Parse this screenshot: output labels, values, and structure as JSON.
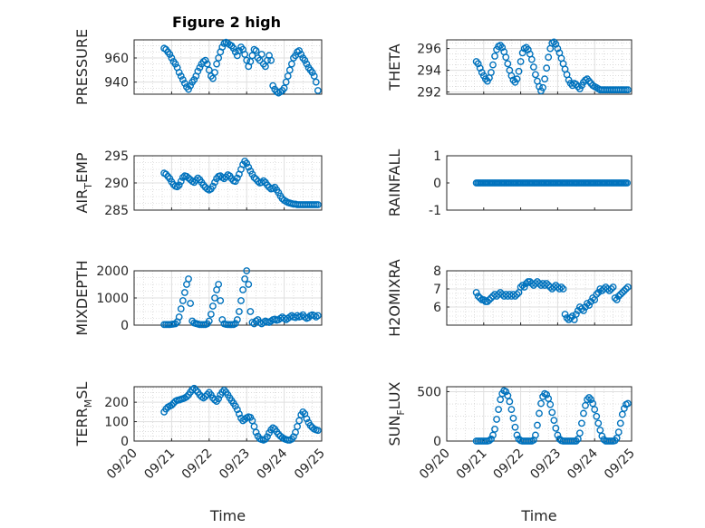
{
  "figure_title": "Figure 2 high",
  "colors": {
    "marker": "#0072BD",
    "axis": "#262626",
    "grid": "#dfdfdf",
    "minor_grid": "#c8c8c8"
  },
  "chart_data": [
    {
      "type": "scatter",
      "ylabel_main": "PRESSURE",
      "ylabel_sub": "",
      "ylabel_tail": "",
      "xlim": [
        "09/20",
        "09/25"
      ],
      "ylim": [
        930,
        975
      ],
      "yticks": [
        940,
        960
      ],
      "grid": true,
      "title": "Figure 2 high",
      "x": [
        20.8,
        20.85,
        20.9,
        20.95,
        21.0,
        21.05,
        21.1,
        21.15,
        21.2,
        21.25,
        21.3,
        21.35,
        21.4,
        21.45,
        21.5,
        21.55,
        21.6,
        21.65,
        21.7,
        21.75,
        21.8,
        21.85,
        21.9,
        21.95,
        22.0,
        22.05,
        22.1,
        22.15,
        22.2,
        22.25,
        22.3,
        22.35,
        22.4,
        22.45,
        22.5,
        22.55,
        22.6,
        22.65,
        22.7,
        22.75,
        22.8,
        22.85,
        22.9,
        22.95,
        23.0,
        23.05,
        23.1,
        23.15,
        23.2,
        23.25,
        23.3,
        23.35,
        23.4,
        23.45,
        23.5,
        23.55,
        23.6,
        23.65,
        23.7,
        23.75,
        23.8,
        23.85,
        23.9,
        23.95,
        24.0,
        24.05,
        24.1,
        24.15,
        24.2,
        24.25,
        24.3,
        24.35,
        24.4,
        24.45,
        24.5,
        24.55,
        24.6,
        24.65,
        24.7,
        24.75,
        24.8,
        24.85,
        24.9
      ],
      "y": [
        968,
        967,
        965,
        963,
        960,
        957,
        955,
        952,
        948,
        945,
        942,
        939,
        936,
        934,
        937,
        940,
        942,
        945,
        949,
        952,
        955,
        957,
        958,
        955,
        950,
        945,
        943,
        948,
        955,
        960,
        965,
        969,
        972,
        973,
        972,
        971,
        970,
        968,
        965,
        962,
        966,
        969,
        967,
        963,
        958,
        953,
        957,
        962,
        967,
        966,
        960,
        958,
        963,
        955,
        953,
        958,
        962,
        958,
        937,
        934,
        932,
        931,
        932,
        933,
        935,
        940,
        945,
        950,
        955,
        960,
        962,
        965,
        966,
        963,
        960,
        958,
        955,
        952,
        950,
        948,
        945,
        940,
        933
      ]
    },
    {
      "type": "scatter",
      "ylabel_main": "THETA",
      "ylabel_sub": "",
      "ylabel_tail": "",
      "xlim": [
        "09/20",
        "09/25"
      ],
      "ylim": [
        291.8,
        296.8
      ],
      "yticks": [
        292,
        294,
        296
      ],
      "grid": true,
      "x": [
        20.8,
        20.85,
        20.9,
        20.95,
        21.0,
        21.05,
        21.1,
        21.15,
        21.2,
        21.25,
        21.3,
        21.35,
        21.4,
        21.45,
        21.5,
        21.55,
        21.6,
        21.65,
        21.7,
        21.75,
        21.8,
        21.85,
        21.9,
        21.95,
        22.0,
        22.05,
        22.1,
        22.15,
        22.2,
        22.25,
        22.3,
        22.35,
        22.4,
        22.45,
        22.5,
        22.55,
        22.6,
        22.65,
        22.7,
        22.75,
        22.8,
        22.85,
        22.9,
        22.95,
        23.0,
        23.05,
        23.1,
        23.15,
        23.2,
        23.25,
        23.3,
        23.35,
        23.4,
        23.45,
        23.5,
        23.55,
        23.6,
        23.65,
        23.7,
        23.75,
        23.8,
        23.85,
        23.9,
        23.95,
        24.0,
        24.05,
        24.1,
        24.15,
        24.2,
        24.25,
        24.3,
        24.35,
        24.4,
        24.45,
        24.5,
        24.55,
        24.6,
        24.65,
        24.7,
        24.75,
        24.8,
        24.85,
        24.9
      ],
      "y": [
        294.8,
        294.6,
        294.2,
        293.8,
        293.5,
        293.2,
        293.0,
        293.3,
        293.8,
        294.5,
        295.3,
        295.9,
        296.2,
        296.3,
        296.1,
        295.7,
        295.2,
        294.6,
        294.0,
        293.5,
        293.1,
        292.9,
        293.2,
        293.9,
        294.8,
        295.6,
        296.0,
        296.1,
        295.9,
        295.5,
        295.0,
        294.3,
        293.6,
        293.0,
        292.5,
        292.1,
        292.4,
        293.2,
        294.2,
        295.2,
        296.0,
        296.5,
        296.6,
        296.4,
        296.0,
        295.6,
        295.1,
        294.6,
        294.1,
        293.6,
        293.1,
        292.8,
        292.6,
        292.8,
        292.7,
        292.5,
        292.3,
        292.6,
        292.9,
        293.1,
        293.2,
        293.0,
        292.8,
        292.6,
        292.5,
        292.4,
        292.3,
        292.2,
        292.2,
        292.2,
        292.2,
        292.2,
        292.2,
        292.2,
        292.2,
        292.2,
        292.2,
        292.2,
        292.2,
        292.2,
        292.2,
        292.2,
        292.2
      ]
    },
    {
      "type": "scatter",
      "ylabel_main": "AIR",
      "ylabel_sub": "T",
      "ylabel_tail": "EMP",
      "xlim": [
        "09/20",
        "09/25"
      ],
      "ylim": [
        285,
        295
      ],
      "yticks": [
        285,
        290,
        295
      ],
      "grid": true,
      "x": [
        20.8,
        20.85,
        20.9,
        20.95,
        21.0,
        21.05,
        21.1,
        21.15,
        21.2,
        21.25,
        21.3,
        21.35,
        21.4,
        21.45,
        21.5,
        21.55,
        21.6,
        21.65,
        21.7,
        21.75,
        21.8,
        21.85,
        21.9,
        21.95,
        22.0,
        22.05,
        22.1,
        22.15,
        22.2,
        22.25,
        22.3,
        22.35,
        22.4,
        22.45,
        22.5,
        22.55,
        22.6,
        22.65,
        22.7,
        22.75,
        22.8,
        22.85,
        22.9,
        22.95,
        23.0,
        23.05,
        23.1,
        23.15,
        23.2,
        23.25,
        23.3,
        23.35,
        23.4,
        23.45,
        23.5,
        23.55,
        23.6,
        23.65,
        23.7,
        23.75,
        23.8,
        23.85,
        23.9,
        23.95,
        24.0,
        24.05,
        24.1,
        24.15,
        24.2,
        24.25,
        24.3,
        24.35,
        24.4,
        24.45,
        24.5,
        24.55,
        24.6,
        24.65,
        24.7,
        24.75,
        24.8,
        24.85,
        24.9
      ],
      "y": [
        291.8,
        291.6,
        291.2,
        290.8,
        290.2,
        289.7,
        289.4,
        289.3,
        289.6,
        290.3,
        291.0,
        291.3,
        291.2,
        290.9,
        290.6,
        290.3,
        290.1,
        290.5,
        290.9,
        290.6,
        290.1,
        289.6,
        289.2,
        288.9,
        288.7,
        288.9,
        289.4,
        290.1,
        290.8,
        291.2,
        291.3,
        291.0,
        290.8,
        291.1,
        291.5,
        291.3,
        290.8,
        290.4,
        290.3,
        290.9,
        291.6,
        292.5,
        293.4,
        294.0,
        293.6,
        292.9,
        292.2,
        291.6,
        291.0,
        290.7,
        290.3,
        290.0,
        290.1,
        290.4,
        290.1,
        289.6,
        289.2,
        288.9,
        289.0,
        289.2,
        288.7,
        288.2,
        287.6,
        287.1,
        286.8,
        286.6,
        286.4,
        286.3,
        286.2,
        286.1,
        286.1,
        286.0,
        286.0,
        286.0,
        286.0,
        286.0,
        286.0,
        286.0,
        286.0,
        286.0,
        286.0,
        286.0,
        286.0
      ]
    },
    {
      "type": "scatter",
      "ylabel_main": "RAINFALL",
      "ylabel_sub": "",
      "ylabel_tail": "",
      "xlim": [
        "09/20",
        "09/25"
      ],
      "ylim": [
        -1,
        1
      ],
      "yticks": [
        -1,
        0,
        1
      ],
      "grid": false,
      "x_range": [
        20.8,
        24.9
      ],
      "x_step": 0.04,
      "constant_y": 0
    },
    {
      "type": "scatter",
      "ylabel_main": "MIXDEPTH",
      "ylabel_sub": "",
      "ylabel_tail": "",
      "xlim": [
        "09/20",
        "09/25"
      ],
      "ylim": [
        0,
        2000
      ],
      "yticks": [
        0,
        1000,
        2000
      ],
      "grid": true,
      "x": [
        20.8,
        20.85,
        20.9,
        20.95,
        21.0,
        21.05,
        21.1,
        21.15,
        21.2,
        21.25,
        21.3,
        21.35,
        21.4,
        21.45,
        21.5,
        21.55,
        21.6,
        21.65,
        21.7,
        21.75,
        21.8,
        21.85,
        21.9,
        21.95,
        22.0,
        22.05,
        22.1,
        22.15,
        22.2,
        22.25,
        22.3,
        22.35,
        22.4,
        22.45,
        22.5,
        22.55,
        22.6,
        22.65,
        22.7,
        22.75,
        22.8,
        22.85,
        22.9,
        22.95,
        23.0,
        23.05,
        23.1,
        23.15,
        23.2,
        23.25,
        23.3,
        23.35,
        23.4,
        23.45,
        23.5,
        23.55,
        23.6,
        23.65,
        23.7,
        23.75,
        23.8,
        23.85,
        23.9,
        23.95,
        24.0,
        24.05,
        24.1,
        24.15,
        24.2,
        24.25,
        24.3,
        24.35,
        24.4,
        24.45,
        24.5,
        24.55,
        24.6,
        24.65,
        24.7,
        24.75,
        24.8,
        24.85,
        24.9
      ],
      "y": [
        20,
        20,
        20,
        20,
        30,
        40,
        50,
        120,
        300,
        600,
        900,
        1200,
        1500,
        1700,
        800,
        150,
        80,
        60,
        40,
        20,
        20,
        20,
        20,
        50,
        150,
        400,
        700,
        1000,
        1300,
        1500,
        900,
        200,
        50,
        30,
        20,
        20,
        20,
        20,
        60,
        200,
        500,
        900,
        1300,
        1700,
        2000,
        1500,
        500,
        100,
        50,
        150,
        200,
        100,
        50,
        100,
        150,
        120,
        100,
        150,
        200,
        220,
        180,
        200,
        250,
        300,
        250,
        200,
        250,
        300,
        350,
        300,
        280,
        350,
        300,
        320,
        380,
        300,
        250,
        280,
        350,
        380,
        350,
        300,
        350
      ]
    },
    {
      "type": "scatter",
      "ylabel_main": "H2OMIXRA",
      "ylabel_sub": "",
      "ylabel_tail": "",
      "xlim": [
        "09/20",
        "09/25"
      ],
      "ylim": [
        5,
        8
      ],
      "yticks": [
        6,
        7,
        8
      ],
      "grid": true,
      "x": [
        20.8,
        20.85,
        20.9,
        20.95,
        21.0,
        21.05,
        21.1,
        21.15,
        21.2,
        21.25,
        21.3,
        21.35,
        21.4,
        21.45,
        21.5,
        21.55,
        21.6,
        21.65,
        21.7,
        21.75,
        21.8,
        21.85,
        21.9,
        21.95,
        22.0,
        22.05,
        22.1,
        22.15,
        22.2,
        22.25,
        22.3,
        22.35,
        22.4,
        22.45,
        22.5,
        22.55,
        22.6,
        22.65,
        22.7,
        22.75,
        22.8,
        22.85,
        22.9,
        22.95,
        23.0,
        23.05,
        23.1,
        23.15,
        23.2,
        23.25,
        23.3,
        23.35,
        23.4,
        23.45,
        23.5,
        23.55,
        23.6,
        23.65,
        23.7,
        23.75,
        23.8,
        23.85,
        23.9,
        23.95,
        24.0,
        24.05,
        24.1,
        24.15,
        24.2,
        24.25,
        24.3,
        24.35,
        24.4,
        24.45,
        24.5,
        24.55,
        24.6,
        24.65,
        24.7,
        24.75,
        24.8,
        24.85,
        24.9
      ],
      "y": [
        6.8,
        6.6,
        6.5,
        6.4,
        6.4,
        6.3,
        6.3,
        6.4,
        6.5,
        6.6,
        6.7,
        6.6,
        6.7,
        6.8,
        6.7,
        6.6,
        6.7,
        6.6,
        6.7,
        6.6,
        6.7,
        6.6,
        6.7,
        6.8,
        7.1,
        7.2,
        7.1,
        7.3,
        7.4,
        7.4,
        7.3,
        7.2,
        7.3,
        7.4,
        7.3,
        7.2,
        7.3,
        7.2,
        7.3,
        7.2,
        7.1,
        7.0,
        7.1,
        7.2,
        7.1,
        7.0,
        7.1,
        7.0,
        5.6,
        5.4,
        5.3,
        5.4,
        5.5,
        5.3,
        5.6,
        5.8,
        6.0,
        5.9,
        5.8,
        6.0,
        6.2,
        6.1,
        6.3,
        6.5,
        6.4,
        6.7,
        6.8,
        7.0,
        6.9,
        7.0,
        7.1,
        7.0,
        6.9,
        7.0,
        7.1,
        6.5,
        6.4,
        6.6,
        6.7,
        6.8,
        6.9,
        7.0,
        7.1
      ]
    },
    {
      "type": "scatter",
      "ylabel_main": "TERR",
      "ylabel_sub": "M",
      "ylabel_tail": "SL",
      "xlim": [
        "09/20",
        "09/25"
      ],
      "ylim": [
        0,
        280
      ],
      "yticks": [
        0,
        100,
        200
      ],
      "grid": true,
      "x": [
        20.8,
        20.85,
        20.9,
        20.95,
        21.0,
        21.05,
        21.1,
        21.15,
        21.2,
        21.25,
        21.3,
        21.35,
        21.4,
        21.45,
        21.5,
        21.55,
        21.6,
        21.65,
        21.7,
        21.75,
        21.8,
        21.85,
        21.9,
        21.95,
        22.0,
        22.05,
        22.1,
        22.15,
        22.2,
        22.25,
        22.3,
        22.35,
        22.4,
        22.45,
        22.5,
        22.55,
        22.6,
        22.65,
        22.7,
        22.75,
        22.8,
        22.85,
        22.9,
        22.95,
        23.0,
        23.05,
        23.1,
        23.15,
        23.2,
        23.25,
        23.3,
        23.35,
        23.4,
        23.45,
        23.5,
        23.55,
        23.6,
        23.65,
        23.7,
        23.75,
        23.8,
        23.85,
        23.9,
        23.95,
        24.0,
        24.05,
        24.1,
        24.15,
        24.2,
        24.25,
        24.3,
        24.35,
        24.4,
        24.45,
        24.5,
        24.55,
        24.6,
        24.65,
        24.7,
        24.75,
        24.8,
        24.85,
        24.9
      ],
      "y": [
        150,
        165,
        175,
        180,
        185,
        195,
        205,
        210,
        212,
        215,
        218,
        222,
        228,
        238,
        252,
        265,
        272,
        262,
        252,
        238,
        228,
        222,
        230,
        240,
        250,
        238,
        222,
        212,
        205,
        218,
        238,
        252,
        262,
        252,
        238,
        222,
        208,
        195,
        180,
        162,
        140,
        118,
        105,
        112,
        120,
        125,
        122,
        105,
        75,
        45,
        25,
        12,
        8,
        5,
        10,
        22,
        42,
        58,
        68,
        62,
        48,
        35,
        25,
        18,
        12,
        8,
        5,
        5,
        10,
        22,
        45,
        75,
        105,
        135,
        150,
        140,
        115,
        95,
        80,
        70,
        62,
        58,
        55
      ]
    },
    {
      "type": "scatter",
      "ylabel_main": "SUN",
      "ylabel_sub": "F",
      "ylabel_tail": "LUX",
      "xlim": [
        "09/20",
        "09/25"
      ],
      "ylim": [
        0,
        550
      ],
      "yticks": [
        0,
        500
      ],
      "grid": true,
      "x": [
        20.8,
        20.85,
        20.9,
        20.95,
        21.0,
        21.05,
        21.1,
        21.15,
        21.2,
        21.25,
        21.3,
        21.35,
        21.4,
        21.45,
        21.5,
        21.55,
        21.6,
        21.65,
        21.7,
        21.75,
        21.8,
        21.85,
        21.9,
        21.95,
        22.0,
        22.05,
        22.1,
        22.15,
        22.2,
        22.25,
        22.3,
        22.35,
        22.4,
        22.45,
        22.5,
        22.55,
        22.6,
        22.65,
        22.7,
        22.75,
        22.8,
        22.85,
        22.9,
        22.95,
        23.0,
        23.05,
        23.1,
        23.15,
        23.2,
        23.25,
        23.3,
        23.35,
        23.4,
        23.45,
        23.5,
        23.55,
        23.6,
        23.65,
        23.7,
        23.75,
        23.8,
        23.85,
        23.9,
        23.95,
        24.0,
        24.05,
        24.1,
        24.15,
        24.2,
        24.25,
        24.3,
        24.35,
        24.4,
        24.45,
        24.5,
        24.55,
        24.6,
        24.65,
        24.7,
        24.75,
        24.8,
        24.85,
        24.9
      ],
      "y": [
        0,
        0,
        0,
        0,
        0,
        0,
        0,
        5,
        20,
        60,
        120,
        220,
        320,
        420,
        480,
        510,
        500,
        460,
        400,
        320,
        230,
        140,
        60,
        20,
        5,
        0,
        0,
        0,
        0,
        0,
        0,
        10,
        60,
        160,
        280,
        380,
        450,
        480,
        470,
        430,
        370,
        290,
        210,
        130,
        60,
        20,
        5,
        0,
        0,
        0,
        0,
        0,
        0,
        0,
        0,
        20,
        80,
        180,
        280,
        360,
        420,
        440,
        420,
        380,
        320,
        250,
        180,
        110,
        50,
        15,
        0,
        0,
        0,
        0,
        0,
        5,
        30,
        90,
        180,
        270,
        330,
        370,
        380
      ]
    }
  ],
  "x_ticks": [
    "09/20",
    "09/21",
    "09/22",
    "09/23",
    "09/24",
    "09/25"
  ],
  "x_label": "Time"
}
